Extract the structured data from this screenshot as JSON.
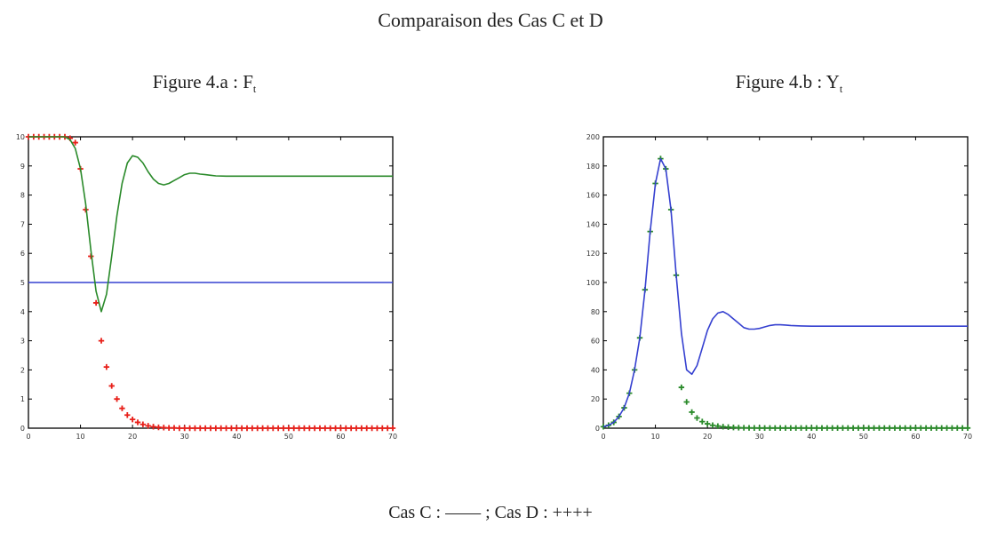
{
  "title": "Comparaison des Cas C et D",
  "legend_text": "Cas C :  ——  ;  Cas D : ++++",
  "colors": {
    "red": "#e8201a",
    "green": "#2a8a2a",
    "blue": "#3540d0",
    "axis": "#000000"
  },
  "chart_data": [
    {
      "type": "line",
      "title_main": "Figure 4.a : F",
      "title_sub": "t",
      "xlim": [
        0,
        70
      ],
      "ylim": [
        0,
        10
      ],
      "xticks": [
        0,
        10,
        20,
        30,
        40,
        50,
        60,
        70
      ],
      "yticks": [
        0,
        1,
        2,
        3,
        4,
        5,
        6,
        7,
        8,
        9,
        10
      ],
      "series": [
        {
          "style": "line",
          "color": "#3540d0",
          "x": [
            0,
            70
          ],
          "y": [
            5,
            5
          ]
        },
        {
          "style": "line",
          "color": "#2a8a2a",
          "x": [
            0,
            2,
            4,
            6,
            7,
            8,
            9,
            10,
            11,
            12,
            13,
            14,
            15,
            16,
            17,
            18,
            19,
            20,
            21,
            22,
            23,
            24,
            25,
            26,
            27,
            28,
            29,
            30,
            31,
            32,
            33,
            34,
            35,
            36,
            38,
            40,
            45,
            50,
            55,
            60,
            65,
            70
          ],
          "y": [
            10,
            10,
            10,
            10,
            10,
            9.9,
            9.6,
            8.9,
            7.7,
            6.1,
            4.7,
            4.0,
            4.6,
            5.9,
            7.3,
            8.4,
            9.1,
            9.35,
            9.3,
            9.1,
            8.8,
            8.55,
            8.4,
            8.35,
            8.4,
            8.5,
            8.6,
            8.7,
            8.75,
            8.75,
            8.72,
            8.7,
            8.68,
            8.66,
            8.65,
            8.65,
            8.65,
            8.65,
            8.65,
            8.65,
            8.65,
            8.65
          ]
        },
        {
          "style": "plus",
          "color": "#e8201a",
          "x": [
            0,
            1,
            2,
            3,
            4,
            5,
            6,
            7,
            8,
            9,
            10,
            11,
            12,
            13,
            14,
            15,
            16,
            17,
            18,
            19,
            20,
            21,
            22,
            23,
            24,
            25,
            26,
            27,
            28,
            29,
            30,
            31,
            32,
            33,
            34,
            35,
            36,
            37,
            38,
            39,
            40,
            41,
            42,
            43,
            44,
            45,
            46,
            47,
            48,
            49,
            50,
            51,
            52,
            53,
            54,
            55,
            56,
            57,
            58,
            59,
            60,
            61,
            62,
            63,
            64,
            65,
            66,
            67,
            68,
            69,
            70
          ],
          "y": [
            10,
            10,
            10,
            10,
            10,
            10,
            10,
            10,
            9.95,
            9.8,
            8.9,
            7.5,
            5.9,
            4.3,
            3.0,
            2.1,
            1.45,
            1.0,
            0.68,
            0.45,
            0.3,
            0.2,
            0.13,
            0.08,
            0.05,
            0.03,
            0.02,
            0.01,
            0.01,
            0,
            0,
            0,
            0,
            0,
            0,
            0,
            0,
            0,
            0,
            0,
            0,
            0,
            0,
            0,
            0,
            0,
            0,
            0,
            0,
            0,
            0,
            0,
            0,
            0,
            0,
            0,
            0,
            0,
            0,
            0,
            0,
            0,
            0,
            0,
            0,
            0,
            0,
            0,
            0,
            0,
            0
          ]
        }
      ]
    },
    {
      "type": "line",
      "title_main": "Figure 4.b : Y",
      "title_sub": "t",
      "xlim": [
        0,
        70
      ],
      "ylim": [
        0,
        200
      ],
      "xticks": [
        0,
        10,
        20,
        30,
        40,
        50,
        60,
        70
      ],
      "yticks": [
        0,
        20,
        40,
        60,
        80,
        100,
        120,
        140,
        160,
        180,
        200
      ],
      "series": [
        {
          "style": "line",
          "color": "#3540d0",
          "x": [
            0,
            1,
            2,
            3,
            4,
            5,
            6,
            7,
            8,
            9,
            10,
            11,
            12,
            13,
            14,
            15,
            16,
            17,
            18,
            19,
            20,
            21,
            22,
            23,
            24,
            25,
            26,
            27,
            28,
            29,
            30,
            31,
            32,
            33,
            34,
            35,
            36,
            37,
            38,
            40,
            42,
            45,
            50,
            55,
            60,
            65,
            70
          ],
          "y": [
            1,
            2,
            4,
            8,
            14,
            24,
            40,
            62,
            95,
            135,
            168,
            185,
            178,
            150,
            105,
            65,
            40,
            37,
            43,
            55,
            67,
            75,
            79,
            80,
            78,
            75,
            72,
            69,
            68,
            68,
            68.5,
            69.5,
            70.5,
            71,
            71,
            70.8,
            70.5,
            70.3,
            70.2,
            70,
            70,
            70,
            70,
            70,
            70,
            70,
            70
          ]
        },
        {
          "style": "plus",
          "color": "#2a8a2a",
          "x": [
            0,
            1,
            2,
            3,
            4,
            5,
            6,
            7,
            8,
            9,
            10,
            11,
            12,
            13,
            14,
            15,
            16,
            17,
            18,
            19,
            20,
            21,
            22,
            23,
            24,
            25,
            26,
            27,
            28,
            29,
            30,
            31,
            32,
            33,
            34,
            35,
            36,
            37,
            38,
            39,
            40,
            41,
            42,
            43,
            44,
            45,
            46,
            47,
            48,
            49,
            50,
            51,
            52,
            53,
            54,
            55,
            56,
            57,
            58,
            59,
            60,
            61,
            62,
            63,
            64,
            65,
            66,
            67,
            68,
            69,
            70
          ],
          "y": [
            1,
            2,
            4,
            8,
            14,
            24,
            40,
            62,
            95,
            135,
            168,
            185,
            178,
            150,
            105,
            28,
            18,
            11,
            7,
            4.5,
            3,
            2,
            1.4,
            1,
            0.7,
            0.5,
            0.35,
            0.25,
            0.2,
            0.15,
            0.1,
            0.1,
            0.1,
            0.1,
            0.1,
            0.1,
            0.1,
            0.1,
            0.1,
            0.1,
            0.1,
            0.1,
            0.1,
            0.1,
            0.1,
            0.1,
            0.1,
            0.1,
            0.1,
            0.1,
            0.1,
            0.1,
            0.1,
            0.1,
            0.1,
            0.1,
            0.1,
            0.1,
            0.1,
            0.1,
            0.1,
            0.1,
            0.1,
            0.1,
            0.1,
            0.1,
            0.1,
            0.1,
            0.1,
            0.1,
            0.1
          ]
        }
      ]
    }
  ]
}
